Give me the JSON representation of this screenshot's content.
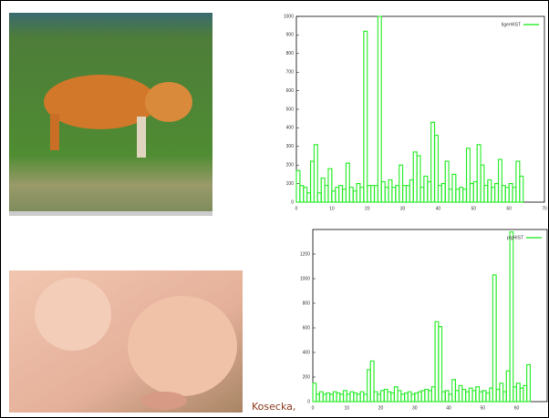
{
  "chart_data": [
    {
      "type": "histogram",
      "legend_label": "tigerHIST",
      "color": "#33ee33",
      "bins": [
        0,
        1,
        2,
        3,
        4,
        5,
        6,
        7,
        8,
        9,
        10,
        11,
        12,
        13,
        14,
        15,
        16,
        17,
        18,
        19,
        20,
        21,
        22,
        23,
        24,
        25,
        26,
        27,
        28,
        29,
        30,
        31,
        32,
        33,
        34,
        35,
        36,
        37,
        38,
        39,
        40,
        41,
        42,
        43,
        44,
        45,
        46,
        47,
        48,
        49,
        50,
        51,
        52,
        53,
        54,
        55,
        56,
        57,
        58,
        59,
        60,
        61,
        62,
        63,
        64
      ],
      "values": [
        170,
        90,
        80,
        50,
        220,
        310,
        50,
        130,
        90,
        180,
        60,
        80,
        90,
        70,
        210,
        80,
        60,
        100,
        80,
        920,
        90,
        90,
        90,
        1000,
        110,
        80,
        120,
        80,
        90,
        200,
        90,
        90,
        120,
        270,
        250,
        80,
        140,
        110,
        430,
        360,
        90,
        100,
        220,
        70,
        150,
        70,
        80,
        70,
        290,
        100,
        110,
        310,
        200,
        90,
        120,
        80,
        100,
        230,
        90,
        80,
        100,
        80,
        220,
        140
      ],
      "xlim": [
        0,
        70
      ],
      "xticks": [
        0,
        10,
        20,
        30,
        40,
        50,
        60,
        70
      ],
      "ylim": [
        0,
        1000
      ],
      "yticks": [
        0,
        100,
        200,
        300,
        400,
        500,
        600,
        700,
        800,
        900,
        1000
      ]
    },
    {
      "type": "histogram",
      "legend_label": "pigHIST",
      "color": "#33ee33",
      "bins": [
        0,
        1,
        2,
        3,
        4,
        5,
        6,
        7,
        8,
        9,
        10,
        11,
        12,
        13,
        14,
        15,
        16,
        17,
        18,
        19,
        20,
        21,
        22,
        23,
        24,
        25,
        26,
        27,
        28,
        29,
        30,
        31,
        32,
        33,
        34,
        35,
        36,
        37,
        38,
        39,
        40,
        41,
        42,
        43,
        44,
        45,
        46,
        47,
        48,
        49,
        50,
        51,
        52,
        53,
        54,
        55,
        56,
        57,
        58,
        59,
        60,
        61,
        62,
        63,
        64
      ],
      "values": [
        150,
        60,
        80,
        60,
        70,
        60,
        80,
        70,
        60,
        90,
        60,
        80,
        70,
        60,
        80,
        60,
        260,
        330,
        80,
        60,
        90,
        100,
        80,
        70,
        120,
        90,
        60,
        70,
        80,
        60,
        70,
        80,
        90,
        100,
        90,
        120,
        650,
        610,
        80,
        90,
        60,
        180,
        90,
        130,
        100,
        80,
        110,
        90,
        120,
        80,
        90,
        70,
        110,
        1030,
        100,
        150,
        80,
        250,
        1380,
        120,
        150,
        110,
        130,
        300
      ],
      "xlim": [
        0,
        69
      ],
      "xticks": [
        0,
        10,
        20,
        30,
        40,
        50,
        60
      ],
      "ylim": [
        0,
        1400
      ],
      "yticks": [
        0,
        200,
        400,
        600,
        800,
        1000,
        1200
      ]
    }
  ],
  "caption": "Kosecka,"
}
